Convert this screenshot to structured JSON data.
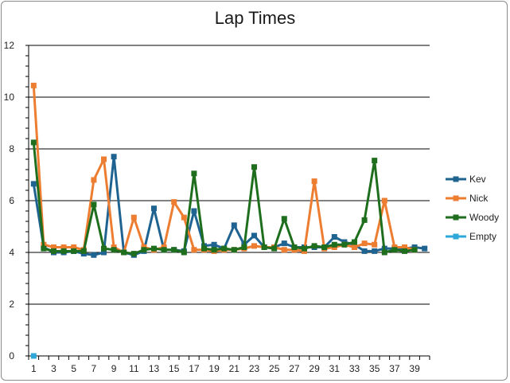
{
  "chart_data": {
    "type": "line",
    "title": "Lap Times",
    "xlabel": "",
    "ylabel": "",
    "ylim": [
      0,
      12
    ],
    "yticks": [
      0,
      2,
      4,
      6,
      8,
      10,
      12
    ],
    "grid": true,
    "legend_position": "right",
    "x": [
      1,
      2,
      3,
      4,
      5,
      6,
      7,
      8,
      9,
      10,
      11,
      12,
      13,
      14,
      15,
      16,
      17,
      18,
      19,
      20,
      21,
      22,
      23,
      24,
      25,
      26,
      27,
      28,
      29,
      30,
      31,
      32,
      33,
      34,
      35,
      36,
      37,
      38,
      39,
      40
    ],
    "x_tick_labels": [
      "1",
      "3",
      "5",
      "7",
      "9",
      "11",
      "13",
      "15",
      "17",
      "19",
      "21",
      "23",
      "25",
      "27",
      "29",
      "31",
      "33",
      "35",
      "37",
      "39"
    ],
    "series": [
      {
        "name": "Kev",
        "color": "#1f6391",
        "marker": "square",
        "values": [
          6.65,
          4.2,
          4.0,
          4.0,
          4.05,
          3.95,
          3.9,
          4.0,
          7.7,
          4.0,
          3.9,
          4.05,
          5.7,
          4.1,
          4.1,
          4.05,
          5.6,
          4.25,
          4.3,
          4.15,
          5.05,
          4.3,
          4.65,
          4.2,
          4.2,
          4.35,
          4.2,
          4.2,
          4.2,
          4.2,
          4.6,
          4.4,
          4.3,
          4.05,
          4.05,
          4.15,
          4.15,
          4.15,
          4.2,
          4.15
        ]
      },
      {
        "name": "Nick",
        "color": "#ed7d31",
        "marker": "square",
        "values": [
          10.45,
          4.3,
          4.2,
          4.2,
          4.2,
          4.1,
          6.8,
          7.6,
          4.2,
          4.0,
          5.35,
          4.2,
          4.1,
          4.2,
          5.95,
          5.35,
          4.1,
          4.1,
          4.05,
          4.1,
          4.1,
          4.15,
          4.25,
          4.2,
          4.2,
          4.1,
          4.1,
          4.05,
          6.75,
          4.15,
          4.2,
          4.3,
          4.2,
          4.35,
          4.3,
          6.0,
          4.2,
          4.2,
          4.1,
          null
        ]
      },
      {
        "name": "Woody",
        "color": "#1e6e1e",
        "marker": "square",
        "values": [
          8.25,
          4.15,
          4.05,
          4.05,
          4.05,
          4.05,
          5.85,
          4.15,
          4.1,
          4.0,
          3.95,
          4.1,
          4.15,
          4.1,
          4.1,
          4.0,
          7.05,
          4.15,
          4.1,
          4.15,
          4.1,
          4.2,
          7.3,
          4.2,
          4.15,
          5.3,
          4.2,
          4.15,
          4.25,
          4.2,
          4.3,
          4.3,
          4.4,
          5.25,
          7.55,
          4.0,
          4.1,
          4.05,
          4.1,
          null
        ]
      },
      {
        "name": "Empty",
        "color": "#2ea8d8",
        "marker": "square",
        "values": [
          0,
          null,
          null,
          null,
          null,
          null,
          null,
          null,
          null,
          null,
          null,
          null,
          null,
          null,
          null,
          null,
          null,
          null,
          null,
          null,
          null,
          null,
          null,
          null,
          null,
          null,
          null,
          null,
          null,
          null,
          null,
          null,
          null,
          null,
          null,
          null,
          null,
          null,
          null,
          null
        ]
      }
    ]
  }
}
